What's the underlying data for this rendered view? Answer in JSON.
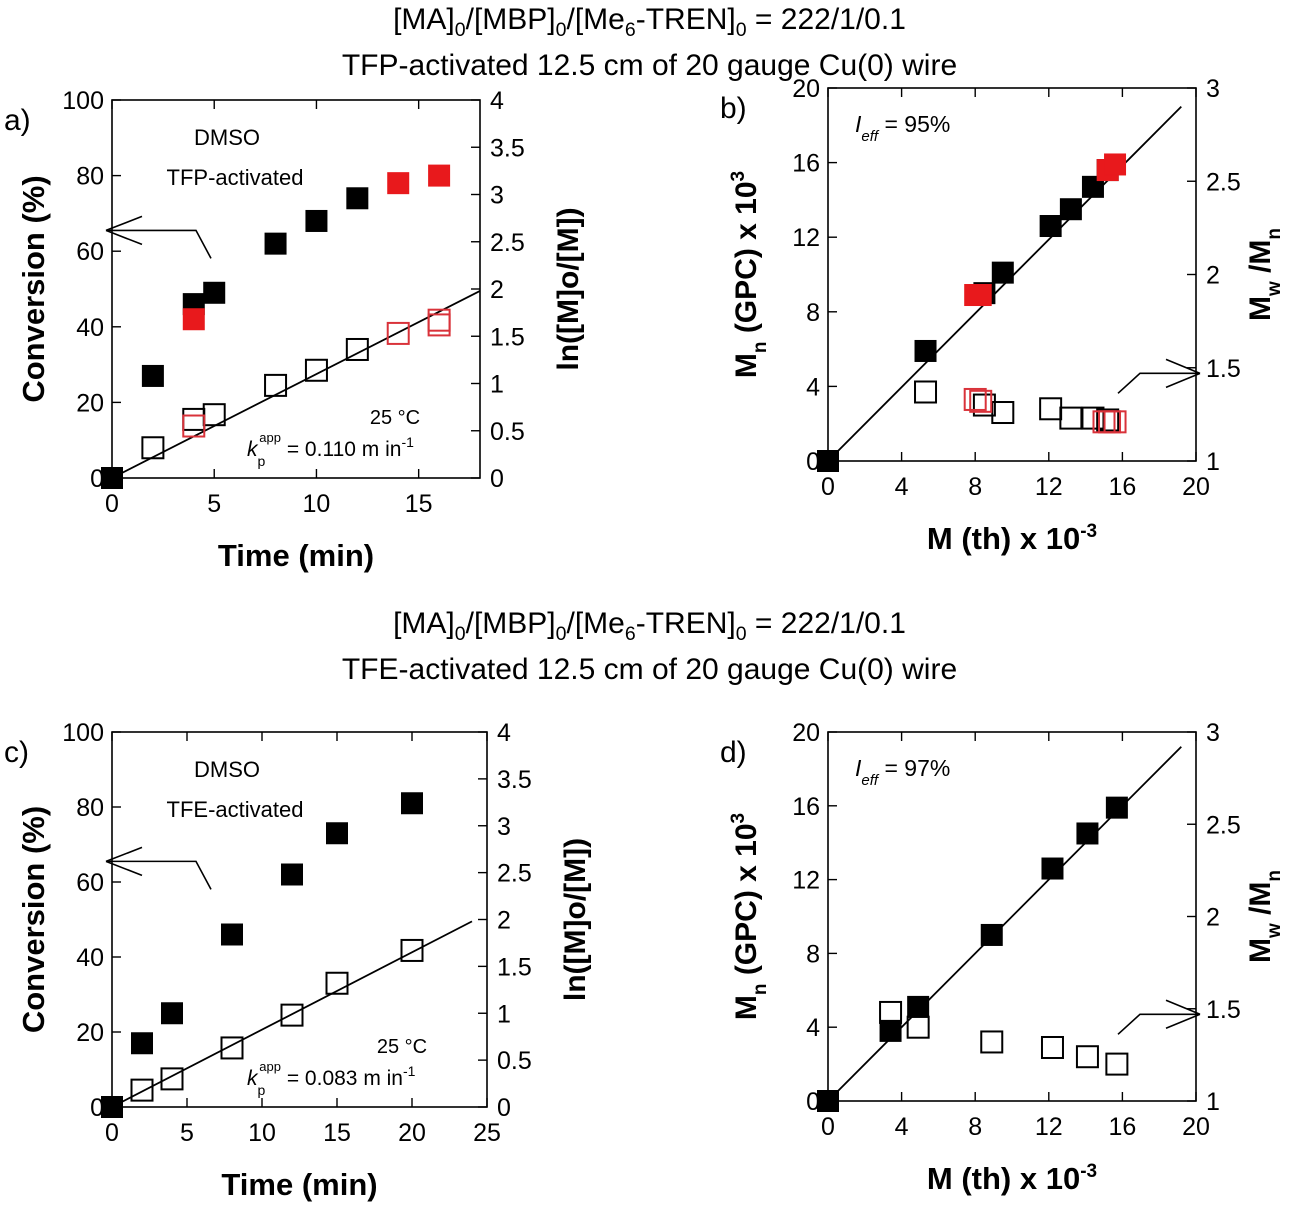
{
  "headers": [
    {
      "line1": {
        "a": "[MA]",
        "s1": "0",
        "b": "/[MBP]",
        "s2": "0",
        "c": "/[Me",
        "s3": "6",
        "d": "-TREN]",
        "s4": "0",
        "e": " = 222/1/0.1"
      },
      "line2": "TFP-activated 12.5 cm of 20 gauge Cu(0) wire"
    },
    {
      "line1": {
        "a": "[MA]",
        "s1": "0",
        "b": "/[MBP]",
        "s2": "0",
        "c": "/[Me",
        "s3": "6",
        "d": "-TREN]",
        "s4": "0",
        "e": " = 222/1/0.1"
      },
      "line2": "TFE-activated 12.5 cm of 20 gauge Cu(0) wire"
    }
  ],
  "colors": {
    "black": "#000000",
    "red": "#e8191c",
    "red_open": "#d9323a"
  },
  "chart_data": [
    {
      "panel_label": "a)",
      "type": "scatter",
      "xlabel": "Time (min)",
      "ylabel": "Conversion (%)",
      "y2label": "ln([M]o/[M])",
      "xlim": [
        0,
        18
      ],
      "ylim": [
        0,
        100
      ],
      "y2lim": [
        0,
        4
      ],
      "xticks": [
        0,
        5,
        10,
        15
      ],
      "yticks": [
        0,
        20,
        40,
        60,
        80,
        100
      ],
      "y2ticks": [
        0,
        0.5,
        1,
        1.5,
        2,
        2.5,
        3,
        3.5,
        4
      ],
      "annotations": {
        "solvent": "DMSO",
        "activation": "TFP-activated",
        "temp": "25 °C",
        "k_label": "k",
        "k_sub": "p",
        "k_sup": "app",
        "k_value": " = 0.110 m in",
        "k_exp": "-1"
      },
      "series": [
        {
          "name": "Conversion",
          "axis": "left",
          "marker": "filled",
          "color": "#000000",
          "x": [
            0,
            2,
            4,
            5,
            8,
            10,
            12
          ],
          "y": [
            0,
            27,
            46,
            49,
            62,
            68,
            74
          ]
        },
        {
          "name": "Conversion (repeat)",
          "axis": "left",
          "marker": "filled",
          "color": "#e8191c",
          "x": [
            4,
            14,
            16
          ],
          "y": [
            42,
            78,
            80
          ]
        },
        {
          "name": "ln([M]o/[M])",
          "axis": "right",
          "marker": "open",
          "color": "#000000",
          "x": [
            2,
            4,
            5,
            8,
            10,
            12
          ],
          "y": [
            0.32,
            0.62,
            0.67,
            0.98,
            1.14,
            1.36
          ]
        },
        {
          "name": "ln([M]o/[M]) (repeat)",
          "axis": "right",
          "marker": "open",
          "color": "#d9323a",
          "x": [
            4,
            14,
            16,
            16
          ],
          "y": [
            0.55,
            1.53,
            1.62,
            1.67
          ]
        }
      ],
      "fit_line": {
        "axis": "right",
        "x": [
          0,
          18
        ],
        "y": [
          0,
          1.98
        ]
      },
      "arrow": {
        "direction": "left",
        "points_to": "Conversion axis"
      }
    },
    {
      "panel_label": "b)",
      "type": "scatter",
      "xlabel": "M (th) x 10",
      "xlabel_exp": "-3",
      "ylabel": "M",
      "ylabel_sub": "n",
      "ylabel_rest": " (GPC) x 10",
      "ylabel_exp": "3",
      "y2label": "M",
      "y2label_sub1": "w",
      "y2label_mid": " /M",
      "y2label_sub2": "n",
      "xlim": [
        0,
        20
      ],
      "ylim": [
        0,
        20
      ],
      "y2lim": [
        1,
        3
      ],
      "xticks": [
        0,
        4,
        8,
        12,
        16,
        20
      ],
      "yticks": [
        0,
        4,
        8,
        12,
        16,
        20
      ],
      "y2ticks": [
        1,
        1.5,
        2,
        2.5,
        3
      ],
      "annotations": {
        "I": "I",
        "I_sub": "eff",
        "I_value": " = 95%"
      },
      "series": [
        {
          "name": "Mn",
          "axis": "left",
          "marker": "filled",
          "color": "#000000",
          "x": [
            0,
            5.3,
            8.5,
            9.5,
            12.1,
            13.2,
            14.4,
            15.2
          ],
          "y": [
            0,
            5.9,
            9.0,
            10.1,
            12.6,
            13.5,
            14.7,
            15.6
          ]
        },
        {
          "name": "Mn (repeat)",
          "axis": "left",
          "marker": "filled",
          "color": "#e8191c",
          "x": [
            8.0,
            8.3,
            15.2,
            15.6
          ],
          "y": [
            8.9,
            8.9,
            15.6,
            15.9
          ]
        },
        {
          "name": "Mw/Mn",
          "axis": "right",
          "marker": "open",
          "color": "#000000",
          "x": [
            5.3,
            8.5,
            9.5,
            12.1,
            13.2,
            14.4,
            15.2
          ],
          "y": [
            1.37,
            1.3,
            1.26,
            1.28,
            1.23,
            1.23,
            1.22
          ]
        },
        {
          "name": "Mw/Mn (repeat)",
          "axis": "right",
          "marker": "open",
          "color": "#d9323a",
          "x": [
            8.0,
            8.3,
            15.0,
            15.3,
            15.6
          ],
          "y": [
            1.33,
            1.32,
            1.21,
            1.21,
            1.21
          ]
        }
      ],
      "fit_line": {
        "axis": "left",
        "x": [
          0,
          19.2
        ],
        "y": [
          0,
          19.0
        ]
      },
      "arrow": {
        "direction": "right",
        "points_to": "Mw/Mn axis"
      }
    },
    {
      "panel_label": "c)",
      "type": "scatter",
      "xlabel": "Time (min)",
      "ylabel": "Conversion (%)",
      "y2label": "ln([M]o/[M])",
      "xlim": [
        0,
        25
      ],
      "ylim": [
        0,
        100
      ],
      "y2lim": [
        0,
        4
      ],
      "xticks": [
        0,
        5,
        10,
        15,
        20,
        25
      ],
      "yticks": [
        0,
        20,
        40,
        60,
        80,
        100
      ],
      "y2ticks": [
        0,
        0.5,
        1,
        1.5,
        2,
        2.5,
        3,
        3.5,
        4
      ],
      "annotations": {
        "solvent": "DMSO",
        "activation": "TFE-activated",
        "temp": "25 °C",
        "k_label": "k",
        "k_sub": "p",
        "k_sup": "app",
        "k_value": " = 0.083 m in",
        "k_exp": "-1"
      },
      "series": [
        {
          "name": "Conversion",
          "axis": "left",
          "marker": "filled",
          "color": "#000000",
          "x": [
            0,
            2,
            4,
            8,
            12,
            15,
            20
          ],
          "y": [
            0,
            17,
            25,
            46,
            62,
            73,
            81
          ]
        },
        {
          "name": "ln([M]o/[M])",
          "axis": "right",
          "marker": "open",
          "color": "#000000",
          "x": [
            2,
            4,
            8,
            12,
            15,
            20
          ],
          "y": [
            0.18,
            0.3,
            0.63,
            0.98,
            1.32,
            1.67
          ]
        }
      ],
      "fit_line": {
        "axis": "right",
        "x": [
          0,
          24
        ],
        "y": [
          0,
          1.98
        ]
      },
      "arrow": {
        "direction": "left",
        "points_to": "Conversion axis"
      }
    },
    {
      "panel_label": "d)",
      "type": "scatter",
      "xlabel": "M (th) x 10",
      "xlabel_exp": "-3",
      "ylabel": "M",
      "ylabel_sub": "n",
      "ylabel_rest": " (GPC) x 10",
      "ylabel_exp": "3",
      "y2label": "M",
      "y2label_sub1": "w",
      "y2label_mid": " /M",
      "y2label_sub2": "n",
      "xlim": [
        0,
        20
      ],
      "ylim": [
        0,
        20
      ],
      "y2lim": [
        1,
        3
      ],
      "xticks": [
        0,
        4,
        8,
        12,
        16,
        20
      ],
      "yticks": [
        0,
        4,
        8,
        12,
        16,
        20
      ],
      "y2ticks": [
        1,
        1.5,
        2,
        2.5,
        3
      ],
      "annotations": {
        "I": "I",
        "I_sub": "eff",
        "I_value": " = 97%"
      },
      "series": [
        {
          "name": "Mn",
          "axis": "left",
          "marker": "filled",
          "color": "#000000",
          "x": [
            0,
            3.4,
            4.9,
            8.9,
            12.2,
            14.1,
            15.7
          ],
          "y": [
            0,
            3.8,
            5.1,
            9.0,
            12.6,
            14.5,
            15.9
          ]
        },
        {
          "name": "Mw/Mn",
          "axis": "right",
          "marker": "open",
          "color": "#000000",
          "x": [
            3.4,
            4.9,
            8.9,
            12.2,
            14.1,
            15.7
          ],
          "y": [
            1.48,
            1.4,
            1.32,
            1.29,
            1.24,
            1.2
          ]
        }
      ],
      "fit_line": {
        "axis": "left",
        "x": [
          0,
          19.2
        ],
        "y": [
          0,
          19.2
        ]
      },
      "arrow": {
        "direction": "right",
        "points_to": "Mw/Mn axis"
      }
    }
  ]
}
